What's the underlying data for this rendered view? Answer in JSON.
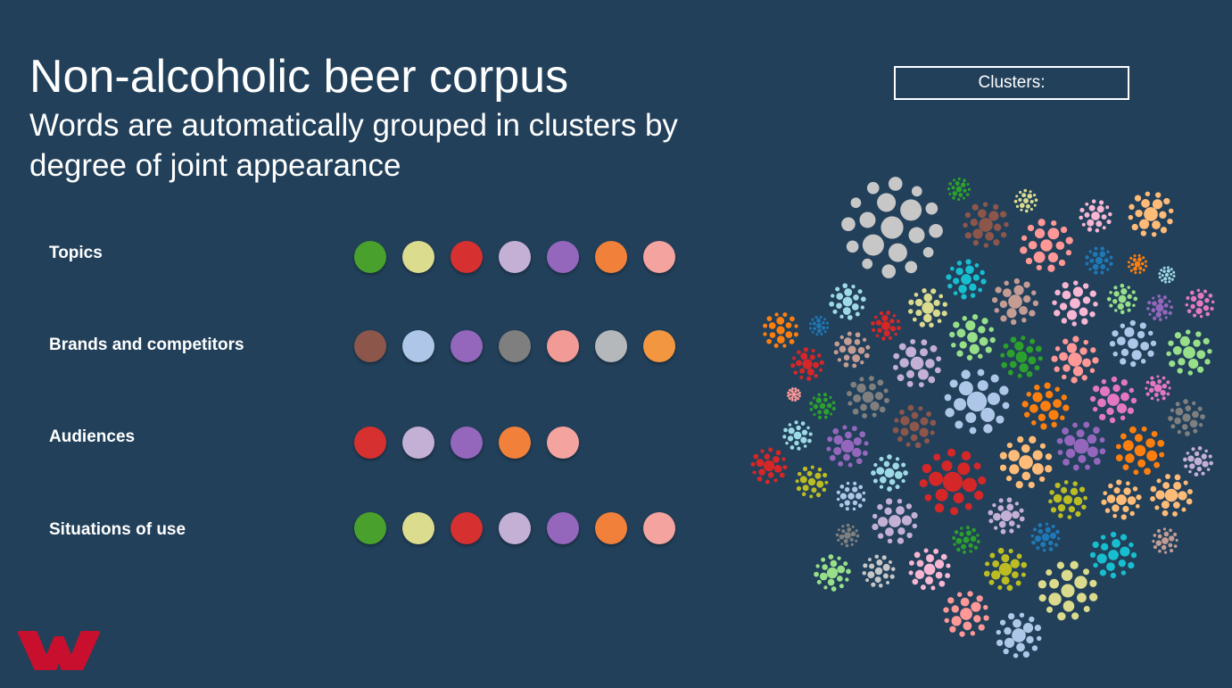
{
  "title": "Non-alcoholic beer corpus",
  "subtitle": "Words are automatically grouped in clusters by degree of joint appearance",
  "clusters_label": "Clusters:",
  "logo": "W",
  "rows": [
    {
      "label": "Topics",
      "colors": [
        "#4aa02c",
        "#dcdc8f",
        "#d63030",
        "#c5b0d5",
        "#9467bd",
        "#f0803a",
        "#f4a39f"
      ]
    },
    {
      "label": "Brands and competitors",
      "colors": [
        "#8c564b",
        "#aec7e8",
        "#9467bd",
        "#7f7f7f",
        "#f29a96",
        "#b5b8bb",
        "#f39640"
      ]
    },
    {
      "label": "Audiences",
      "colors": [
        "#d63030",
        "#c5b0d5",
        "#9467bd",
        "#f0803a",
        "#f4a39f"
      ]
    },
    {
      "label": "Situations of use",
      "colors": [
        "#4aa02c",
        "#dcdc8f",
        "#d63030",
        "#c5b0d5",
        "#9467bd",
        "#f0803a",
        "#f4a39f"
      ]
    }
  ],
  "cluster_palette": [
    "#c7c7c7",
    "#2ca02c",
    "#8c564b",
    "#e377c2",
    "#dbdb8d",
    "#ffbb78",
    "#17becf",
    "#9edae5",
    "#f7b6d2",
    "#1f77b4",
    "#ff7f0e",
    "#d62728",
    "#9467bd",
    "#c5b0d5",
    "#98df8a",
    "#aec7e8",
    "#ff9896",
    "#7f7f7f",
    "#bcbd22",
    "#c49c94"
  ],
  "colors": {
    "background": "#22405a",
    "logo": "#c8102e",
    "text": "#ffffff"
  }
}
